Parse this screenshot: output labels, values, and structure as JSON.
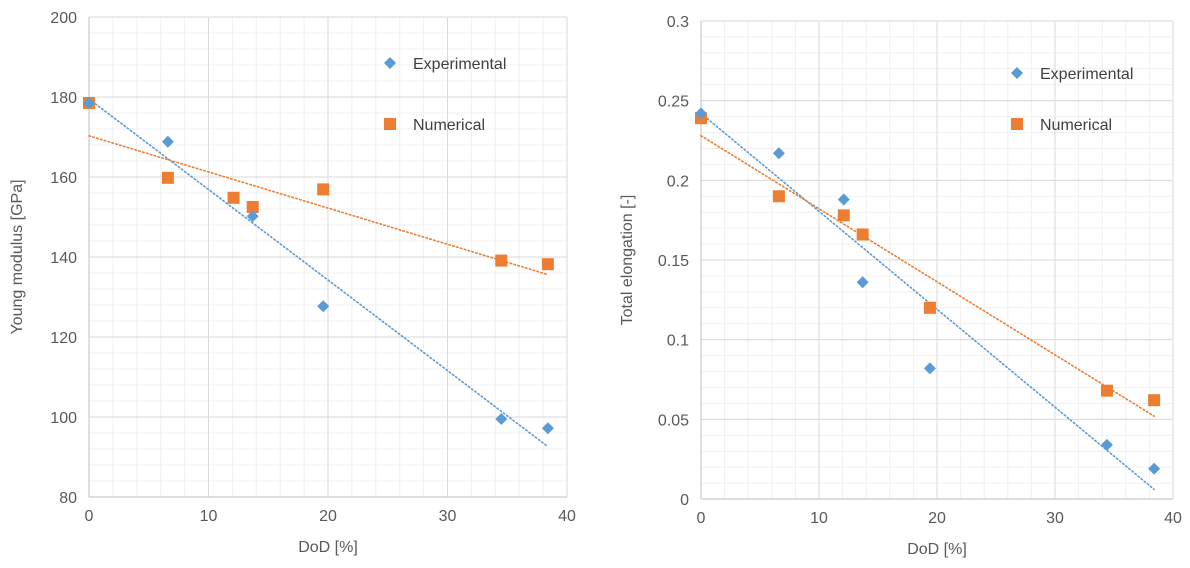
{
  "chart_data": [
    {
      "type": "scatter",
      "xlabel": "DoD [%]",
      "ylabel": "Young modulus [GPa]",
      "xlim": [
        0,
        40
      ],
      "ylim": [
        80,
        200
      ],
      "xticks": [
        "0",
        "10",
        "20",
        "30",
        "40"
      ],
      "yticks": [
        "80",
        "100",
        "120",
        "140",
        "160",
        "180",
        "200"
      ],
      "grid": true,
      "minor_grid": true,
      "legend_position": "top-right",
      "series": [
        {
          "name": "Experimental",
          "marker": "diamond",
          "color": "#5b9bd5",
          "x": [
            0,
            6.6,
            13.7,
            19.6,
            34.5,
            38.4
          ],
          "y": [
            178.5,
            168.8,
            150.2,
            127.7,
            99.5,
            97.2
          ],
          "trendline": {
            "x": [
              0,
              38.4
            ],
            "y": [
              179.5,
              92.6
            ]
          }
        },
        {
          "name": "Numerical",
          "marker": "square",
          "color": "#ed7d31",
          "x": [
            0,
            6.6,
            12.1,
            13.7,
            19.6,
            34.5,
            38.4
          ],
          "y": [
            178.5,
            159.8,
            154.8,
            152.5,
            156.9,
            139.1,
            138.2
          ],
          "trendline": {
            "x": [
              0,
              38.4
            ],
            "y": [
              170.3,
              135.6
            ]
          }
        }
      ]
    },
    {
      "type": "scatter",
      "xlabel": "DoD [%]",
      "ylabel": "Total elongation [-]",
      "xlim": [
        0,
        40
      ],
      "ylim": [
        0,
        0.3
      ],
      "xticks": [
        "0",
        "10",
        "20",
        "30",
        "40"
      ],
      "yticks": [
        "0",
        "0.05",
        "0.1",
        "0.15",
        "0.2",
        "0.25",
        "0.3"
      ],
      "grid": true,
      "minor_grid": true,
      "legend_position": "top-right",
      "series": [
        {
          "name": "Experimental",
          "marker": "diamond",
          "color": "#5b9bd5",
          "x": [
            0,
            6.6,
            12.1,
            13.7,
            19.4,
            34.4,
            38.4
          ],
          "y": [
            0.242,
            0.217,
            0.188,
            0.136,
            0.082,
            0.034,
            0.019
          ],
          "trendline": {
            "x": [
              0,
              38.4
            ],
            "y": [
              0.242,
              0.006
            ]
          }
        },
        {
          "name": "Numerical",
          "marker": "square",
          "color": "#ed7d31",
          "x": [
            0,
            6.6,
            12.1,
            13.7,
            19.4,
            34.4,
            38.4
          ],
          "y": [
            0.239,
            0.19,
            0.178,
            0.166,
            0.12,
            0.068,
            0.062
          ],
          "trendline": {
            "x": [
              0,
              38.4
            ],
            "y": [
              0.228,
              0.052
            ]
          }
        }
      ]
    }
  ]
}
